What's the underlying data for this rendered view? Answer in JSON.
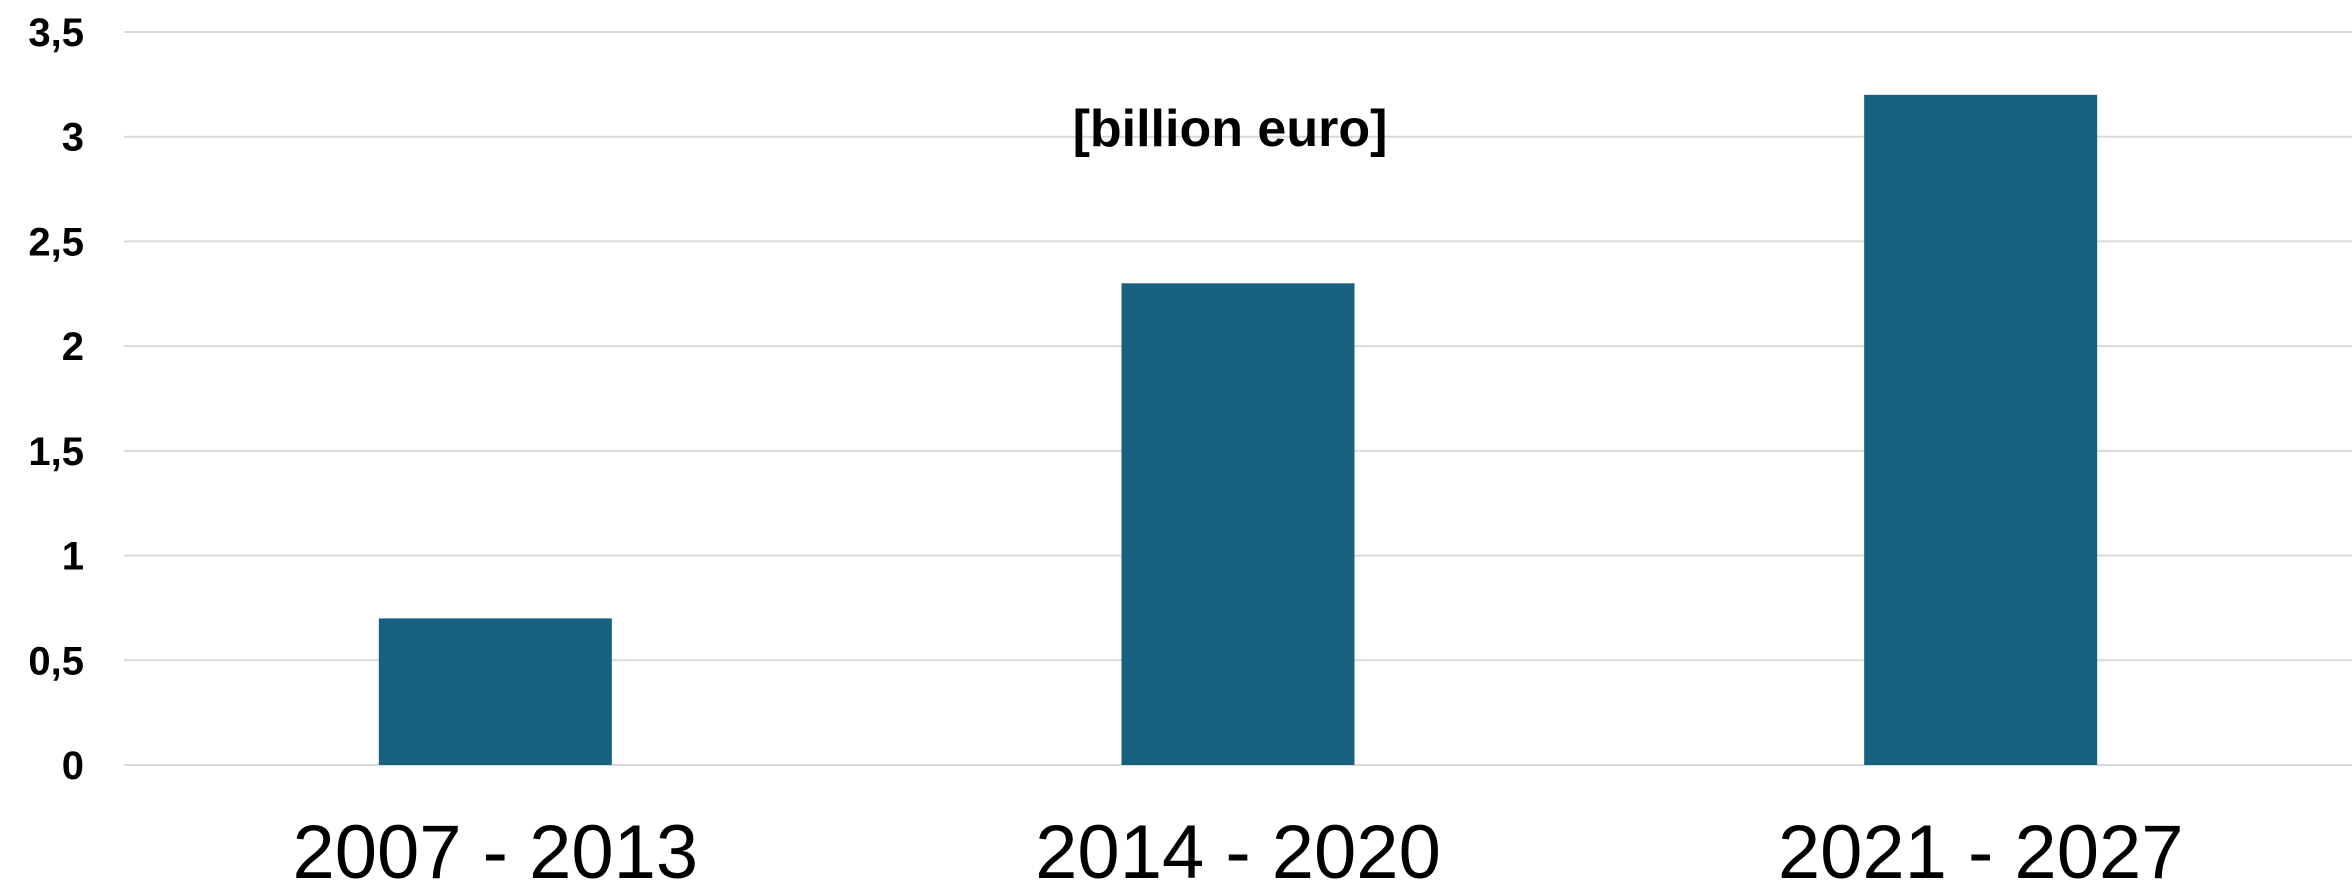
{
  "chart_data": {
    "type": "bar",
    "title": "",
    "annotation": "[billion euro]",
    "xlabel": "",
    "ylabel": "",
    "categories": [
      "2007 - 2013",
      "2014 - 2020",
      "2021 - 2027"
    ],
    "values": [
      0.7,
      2.3,
      3.2
    ],
    "ylim": [
      0,
      3.5
    ],
    "yticks": [
      0,
      0.5,
      1,
      1.5,
      2,
      2.5,
      3,
      3.5
    ],
    "ytick_labels": [
      "0",
      "0,5",
      "1",
      "1,5",
      "2",
      "2,5",
      "3",
      "3,5"
    ],
    "grid": "horizontal",
    "legend": "none",
    "colors": {
      "bar": "#17607f",
      "grid": "#d9d9d9",
      "text": "#000000"
    }
  }
}
